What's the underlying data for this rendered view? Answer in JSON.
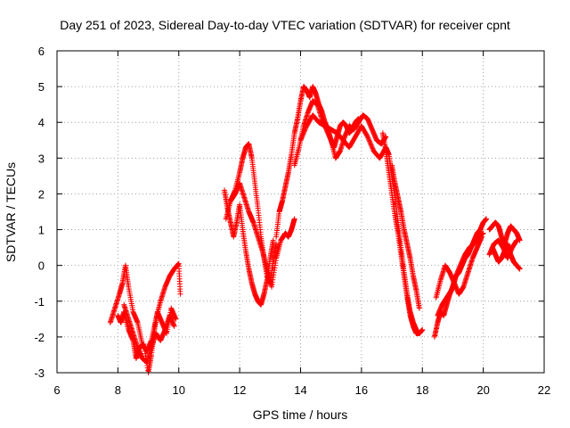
{
  "chart_data": {
    "type": "scatter",
    "title": "Day 251 of 2023, Sidereal Day-to-day VTEC variation (SDTVAR) for receiver cpnt",
    "xlabel": "GPS time / hours",
    "ylabel": "SDTVAR / TECUs",
    "xlim": [
      6,
      22
    ],
    "ylim": [
      -3,
      6
    ],
    "xticks": [
      "6",
      "8",
      "10",
      "12",
      "14",
      "16",
      "18",
      "20",
      "22"
    ],
    "yticks": [
      "-3",
      "-2",
      "-1",
      "0",
      "1",
      "2",
      "3",
      "4",
      "5",
      "6"
    ],
    "grid": true,
    "marker": "+",
    "series": [
      {
        "name": "SDTVAR",
        "color": "#ff0000",
        "tracks": [
          {
            "x": [
              7.75,
              7.9,
              8.05,
              8.15,
              8.25,
              8.35,
              8.5,
              8.65,
              8.8,
              8.95,
              9.1,
              9.25,
              9.4,
              9.55,
              9.7,
              9.85,
              10.0,
              10.05
            ],
            "y": [
              -1.6,
              -1.2,
              -0.8,
              -0.5,
              0.0,
              -0.6,
              -1.3,
              -1.6,
              -2.2,
              -2.4,
              -2.1,
              -1.5,
              -1.0,
              -0.6,
              -0.3,
              -0.1,
              0.05,
              -0.8
            ]
          },
          {
            "x": [
              8.0,
              8.1,
              8.2,
              8.35,
              8.5,
              8.6,
              8.7,
              8.85,
              9.0,
              9.1,
              9.2,
              9.3,
              9.45,
              9.6,
              9.75,
              9.9
            ],
            "y": [
              -1.4,
              -1.6,
              -1.3,
              -1.8,
              -2.1,
              -2.6,
              -2.3,
              -2.2,
              -3.0,
              -2.5,
              -1.8,
              -1.3,
              -1.6,
              -1.9,
              -1.2,
              -1.5
            ]
          },
          {
            "x": [
              8.2,
              8.35,
              8.5,
              8.65,
              8.8,
              8.95,
              9.1,
              9.25,
              9.4,
              9.55,
              9.7,
              9.85
            ],
            "y": [
              -1.1,
              -1.5,
              -1.9,
              -2.3,
              -2.6,
              -2.7,
              -2.3,
              -1.9,
              -2.1,
              -1.8,
              -1.4,
              -1.7
            ]
          },
          {
            "x": [
              11.5,
              11.6,
              11.7,
              11.8,
              11.9,
              12.0,
              12.1,
              12.2,
              12.3,
              12.4,
              12.5,
              12.6,
              12.7,
              12.8,
              12.9,
              13.0,
              13.1
            ],
            "y": [
              2.1,
              1.6,
              1.2,
              0.8,
              1.2,
              1.7,
              1.0,
              0.4,
              -0.1,
              -0.5,
              -0.8,
              -1.0,
              -1.1,
              -0.8,
              -0.4,
              0.2,
              0.7
            ]
          },
          {
            "x": [
              11.55,
              11.7,
              11.85,
              12.0,
              12.1,
              12.2,
              12.3,
              12.4,
              12.5,
              12.6,
              12.7,
              12.8,
              12.9,
              13.0,
              13.1,
              13.2
            ],
            "y": [
              1.3,
              1.8,
              2.1,
              2.6,
              3.0,
              3.3,
              3.4,
              3.0,
              2.3,
              1.6,
              0.8,
              0.2,
              -0.3,
              -0.5,
              0.1,
              0.6
            ]
          },
          {
            "x": [
              11.7,
              11.85,
              12.0,
              12.15,
              12.3,
              12.45,
              12.6,
              12.75,
              12.9,
              13.05,
              13.2,
              13.35,
              13.5,
              13.6,
              13.7,
              13.8
            ],
            "y": [
              1.8,
              2.0,
              2.3,
              1.9,
              1.5,
              1.2,
              0.8,
              0.4,
              -0.1,
              -0.6,
              0.2,
              0.7,
              0.9,
              0.8,
              1.0,
              1.3
            ]
          },
          {
            "x": [
              13.2,
              13.3,
              13.4,
              13.5,
              13.6,
              13.7,
              13.8,
              13.9,
              14.0,
              14.1,
              14.2,
              14.3,
              14.4,
              14.5,
              14.6,
              14.7,
              14.8,
              14.9,
              15.0,
              15.1,
              15.2,
              15.3,
              15.4,
              15.5,
              15.6,
              15.7,
              15.8,
              15.9
            ],
            "y": [
              0.8,
              1.5,
              1.8,
              2.2,
              2.6,
              3.1,
              3.7,
              4.1,
              4.6,
              5.0,
              4.9,
              4.7,
              5.0,
              4.8,
              4.5,
              4.3,
              4.0,
              3.8,
              3.5,
              3.3,
              3.6,
              3.9,
              4.0,
              3.9,
              3.7,
              3.8,
              4.0,
              4.1
            ]
          },
          {
            "x": [
              13.8,
              13.95,
              14.1,
              14.25,
              14.4,
              14.55,
              14.7,
              14.85,
              15.0,
              15.15,
              15.3,
              15.45,
              15.6,
              15.75,
              15.9,
              16.05,
              16.2,
              16.35,
              16.5,
              16.65,
              16.8
            ],
            "y": [
              2.8,
              3.3,
              3.9,
              4.3,
              4.6,
              4.5,
              4.1,
              3.8,
              3.5,
              3.0,
              3.2,
              3.6,
              3.9,
              3.8,
              4.0,
              4.2,
              4.1,
              3.8,
              3.5,
              3.4,
              3.6
            ]
          },
          {
            "x": [
              14.0,
              14.2,
              14.4,
              14.6,
              14.8,
              15.0,
              15.2,
              15.4,
              15.6,
              15.8,
              16.0,
              16.2,
              16.4,
              16.6,
              16.8,
              16.9,
              17.0,
              17.1,
              17.2,
              17.3,
              17.4,
              17.5,
              17.6,
              17.7,
              17.8,
              17.9
            ],
            "y": [
              3.5,
              3.9,
              4.2,
              4.0,
              3.9,
              3.8,
              3.7,
              3.5,
              3.3,
              3.6,
              3.9,
              3.6,
              3.2,
              3.0,
              3.3,
              3.1,
              2.5,
              1.9,
              1.2,
              0.5,
              -0.2,
              -0.8,
              -1.3,
              -1.6,
              -1.8,
              -1.9
            ]
          },
          {
            "x": [
              16.7,
              16.8,
              16.9,
              17.0,
              17.1,
              17.2,
              17.3,
              17.4,
              17.5,
              17.6,
              17.7,
              17.8,
              17.9,
              18.0
            ],
            "y": [
              3.7,
              3.2,
              2.6,
              2.0,
              1.4,
              0.9,
              0.3,
              -0.3,
              -0.9,
              -1.4,
              -1.7,
              -1.9,
              -1.9,
              -1.8
            ]
          },
          {
            "x": [
              17.0,
              17.1,
              17.2,
              17.3,
              17.4,
              17.5,
              17.6,
              17.7,
              17.8,
              17.9
            ],
            "y": [
              2.8,
              2.3,
              1.9,
              1.5,
              1.0,
              0.6,
              0.2,
              -0.3,
              -0.7,
              -1.2
            ]
          },
          {
            "x": [
              18.4,
              18.5,
              18.6,
              18.7,
              18.8,
              18.9,
              19.0,
              19.1,
              19.2,
              19.3,
              19.4,
              19.5,
              19.6,
              19.7,
              19.8,
              19.9,
              20.0,
              20.1
            ],
            "y": [
              -2.0,
              -1.6,
              -1.3,
              -1.4,
              -1.1,
              -0.8,
              -0.6,
              -0.3,
              -0.2,
              0.0,
              0.2,
              0.3,
              0.5,
              0.7,
              0.9,
              1.0,
              1.2,
              1.3
            ]
          },
          {
            "x": [
              18.45,
              18.6,
              18.75,
              18.9,
              19.05,
              19.2,
              19.35,
              19.5,
              19.65,
              19.8,
              19.95
            ],
            "y": [
              -0.9,
              -0.4,
              0.0,
              -0.2,
              -0.5,
              -0.8,
              -0.6,
              -0.2,
              0.2,
              0.5,
              0.8
            ]
          },
          {
            "x": [
              18.5,
              18.65,
              18.8,
              18.95,
              19.1,
              19.25,
              19.4,
              19.55,
              19.7,
              19.85,
              20.0
            ],
            "y": [
              -1.4,
              -1.1,
              -0.9,
              -0.7,
              -0.3,
              0.0,
              0.3,
              0.5,
              0.6,
              0.8,
              0.9
            ]
          },
          {
            "x": [
              20.2,
              20.3,
              20.4,
              20.5,
              20.6,
              20.7,
              20.8,
              20.9,
              21.0,
              21.1,
              21.2
            ],
            "y": [
              1.0,
              1.1,
              1.2,
              1.1,
              0.8,
              0.6,
              0.9,
              1.1,
              1.0,
              0.9,
              0.7
            ]
          },
          {
            "x": [
              20.3,
              20.4,
              20.5,
              20.6,
              20.7,
              20.8,
              20.9,
              21.0,
              21.1,
              21.2
            ],
            "y": [
              0.5,
              0.3,
              0.1,
              0.2,
              0.4,
              0.6,
              0.3,
              0.1,
              0.0,
              -0.1
            ]
          },
          {
            "x": [
              20.2,
              20.35,
              20.5,
              20.65,
              20.8,
              20.95,
              21.1
            ],
            "y": [
              0.3,
              0.6,
              0.7,
              0.5,
              0.2,
              0.5,
              0.7
            ]
          }
        ]
      }
    ]
  }
}
